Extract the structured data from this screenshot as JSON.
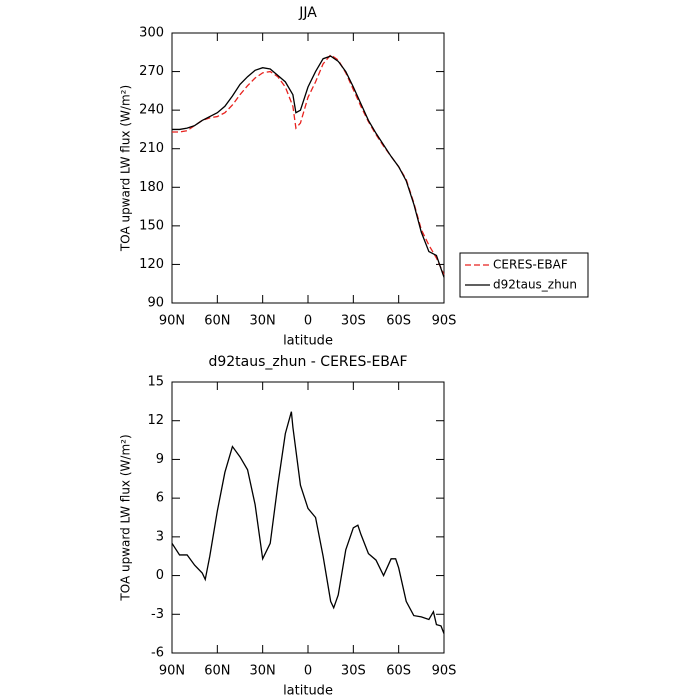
{
  "chart_data": [
    {
      "type": "line",
      "title": "JJA",
      "xlabel": "latitude",
      "ylabel": "TOA upward LW flux (W/m²)",
      "x": [
        90,
        85,
        80,
        75,
        70,
        65,
        60,
        55,
        50,
        45,
        40,
        35,
        30,
        25,
        20,
        15,
        10,
        8,
        5,
        0,
        -5,
        -10,
        -15,
        -20,
        -25,
        -30,
        -35,
        -40,
        -45,
        -50,
        -55,
        -60,
        -65,
        -70,
        -75,
        -80,
        -85,
        -90
      ],
      "series": [
        {
          "name": "CERES-EBAF",
          "color": "#e8221e",
          "linestyle": "dashed",
          "values": [
            223,
            223,
            224,
            228,
            232,
            234,
            235,
            238,
            244,
            252,
            259,
            265,
            269,
            270,
            266,
            258,
            243,
            226,
            230,
            250,
            262,
            276,
            283,
            279,
            269,
            256,
            243,
            231,
            221,
            212,
            204,
            196,
            186,
            168,
            147,
            135,
            125,
            112
          ]
        },
        {
          "name": "d92taus_zhun",
          "color": "#000000",
          "linestyle": "solid",
          "values": [
            225,
            225,
            226,
            228,
            232,
            235,
            238,
            243,
            251,
            260,
            266,
            271,
            273,
            272,
            267,
            262,
            252,
            238,
            240,
            258,
            270,
            280,
            282,
            278,
            270,
            258,
            245,
            232,
            222,
            213,
            204,
            196,
            185,
            167,
            145,
            130,
            127,
            110
          ]
        }
      ],
      "xlim": [
        90,
        -90
      ],
      "xticks": [
        {
          "value": 90,
          "label": "90N"
        },
        {
          "value": 60,
          "label": "60N"
        },
        {
          "value": 30,
          "label": "30N"
        },
        0,
        {
          "value": -30,
          "label": "30S"
        },
        {
          "value": -60,
          "label": "60S"
        },
        {
          "value": -90,
          "label": "90S"
        }
      ],
      "ylim": [
        90,
        300
      ],
      "yticks": [
        90,
        120,
        150,
        180,
        210,
        240,
        270,
        300
      ],
      "legend": "outside-right"
    },
    {
      "type": "line",
      "title": "d92taus_zhun - CERES-EBAF",
      "xlabel": "latitude",
      "ylabel": "TOA upward LW flux (W/m²)",
      "x": [
        90,
        85,
        80,
        75,
        70,
        68,
        65,
        60,
        55,
        50,
        45,
        40,
        35,
        30,
        25,
        20,
        15,
        11,
        10,
        5,
        0,
        -5,
        -10,
        -15,
        -17,
        -20,
        -25,
        -30,
        -33,
        -35,
        -40,
        -45,
        -50,
        -55,
        -58,
        -60,
        -65,
        -70,
        -75,
        -80,
        -83,
        -85,
        -88,
        -90
      ],
      "series": [
        {
          "name": "d92taus_zhun - CERES-EBAF",
          "color": "#000000",
          "linestyle": "solid",
          "values": [
            2.5,
            1.6,
            1.6,
            0.8,
            0.2,
            -0.3,
            1.5,
            5,
            8,
            10,
            9.2,
            8.2,
            5.5,
            1.3,
            2.5,
            7,
            11,
            12.7,
            11.5,
            7,
            5.2,
            4.5,
            1.5,
            -2,
            -2.5,
            -1.5,
            2,
            3.7,
            3.9,
            3.2,
            1.7,
            1.2,
            0,
            1.3,
            1.3,
            0.6,
            -2,
            -3.1,
            -3.2,
            -3.4,
            -2.8,
            -3.8,
            -3.9,
            -4.5
          ]
        }
      ],
      "xlim": [
        90,
        -90
      ],
      "xticks": [
        {
          "value": 90,
          "label": "90N"
        },
        {
          "value": 60,
          "label": "60N"
        },
        {
          "value": 30,
          "label": "30N"
        },
        0,
        {
          "value": -30,
          "label": "30S"
        },
        {
          "value": -60,
          "label": "60S"
        },
        {
          "value": -90,
          "label": "90S"
        }
      ],
      "ylim": [
        -6,
        15
      ],
      "yticks": [
        -6,
        -3,
        0,
        3,
        6,
        9,
        12,
        15
      ]
    }
  ]
}
